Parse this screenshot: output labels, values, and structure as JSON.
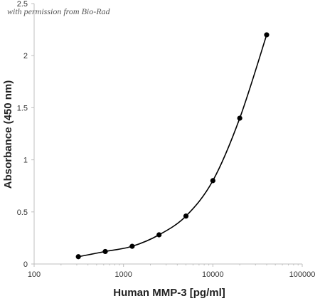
{
  "watermark": "with permission from Bio-Rad",
  "chart_data": {
    "type": "scatter",
    "title": "",
    "xlabel": "Human MMP-3 [pg/ml]",
    "ylabel": "Absorbance (450 nm)",
    "x_scale": "log",
    "xlim": [
      100,
      100000
    ],
    "ylim": [
      0,
      2.5
    ],
    "x_ticks": [
      "100",
      "1000",
      "10000",
      "100000"
    ],
    "y_ticks": [
      "0",
      "0.5",
      "1",
      "1.5",
      "2",
      "2.5"
    ],
    "grid": false,
    "legend": "none",
    "series": [
      {
        "x": [
          312.5,
          625,
          1250,
          2500,
          5000,
          10000,
          20000,
          40000
        ],
        "y": [
          0.07,
          0.12,
          0.17,
          0.28,
          0.46,
          0.8,
          1.4,
          2.2
        ]
      }
    ],
    "fitted_curve": true,
    "colors": {
      "marker": "#000000",
      "line": "#000000",
      "axis": "#bfbfbf"
    }
  }
}
